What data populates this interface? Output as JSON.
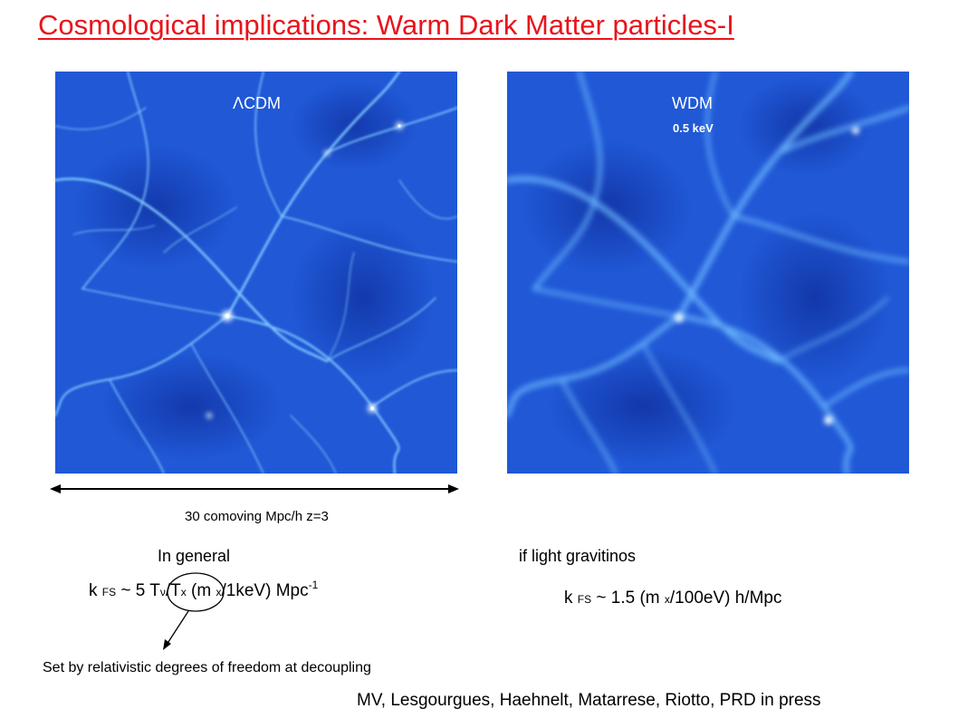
{
  "title": "Cosmological implications: Warm Dark Matter particles-I",
  "panels": {
    "cdm": {
      "symbol": "Λ",
      "label": "CDM"
    },
    "wdm": {
      "label": "WDM",
      "sublabel": "0.5 keV"
    }
  },
  "scale": {
    "label": "30 comoving Mpc/h  z=3"
  },
  "formulas": {
    "general_label": "In general",
    "gravitino_label": "if light gravitinos",
    "left": {
      "k": "k ",
      "fs": "FS",
      "pre": " ~ 5 ",
      "t1": "T",
      "nu": "ν",
      "slash": "/T",
      "x1": "x",
      "mid": " (m ",
      "x2": "x",
      "post": "/1keV) Mpc",
      "exp": "-1"
    },
    "right": {
      "k": "k ",
      "fs": "FS",
      "pre": " ~ 1.5  (m ",
      "x": "x",
      "post": "/100eV) h/Mpc"
    }
  },
  "annotation": "Set by relativistic degrees of freedom at decoupling",
  "reference": "MV, Lesgourgues, Haehnelt, Matarrese, Riotto,  PRD in press",
  "colors": {
    "title": "#e8141c",
    "panel_background": "#1f54d2",
    "filament": "#7fc8ff",
    "halo": "#e6f6ff"
  }
}
